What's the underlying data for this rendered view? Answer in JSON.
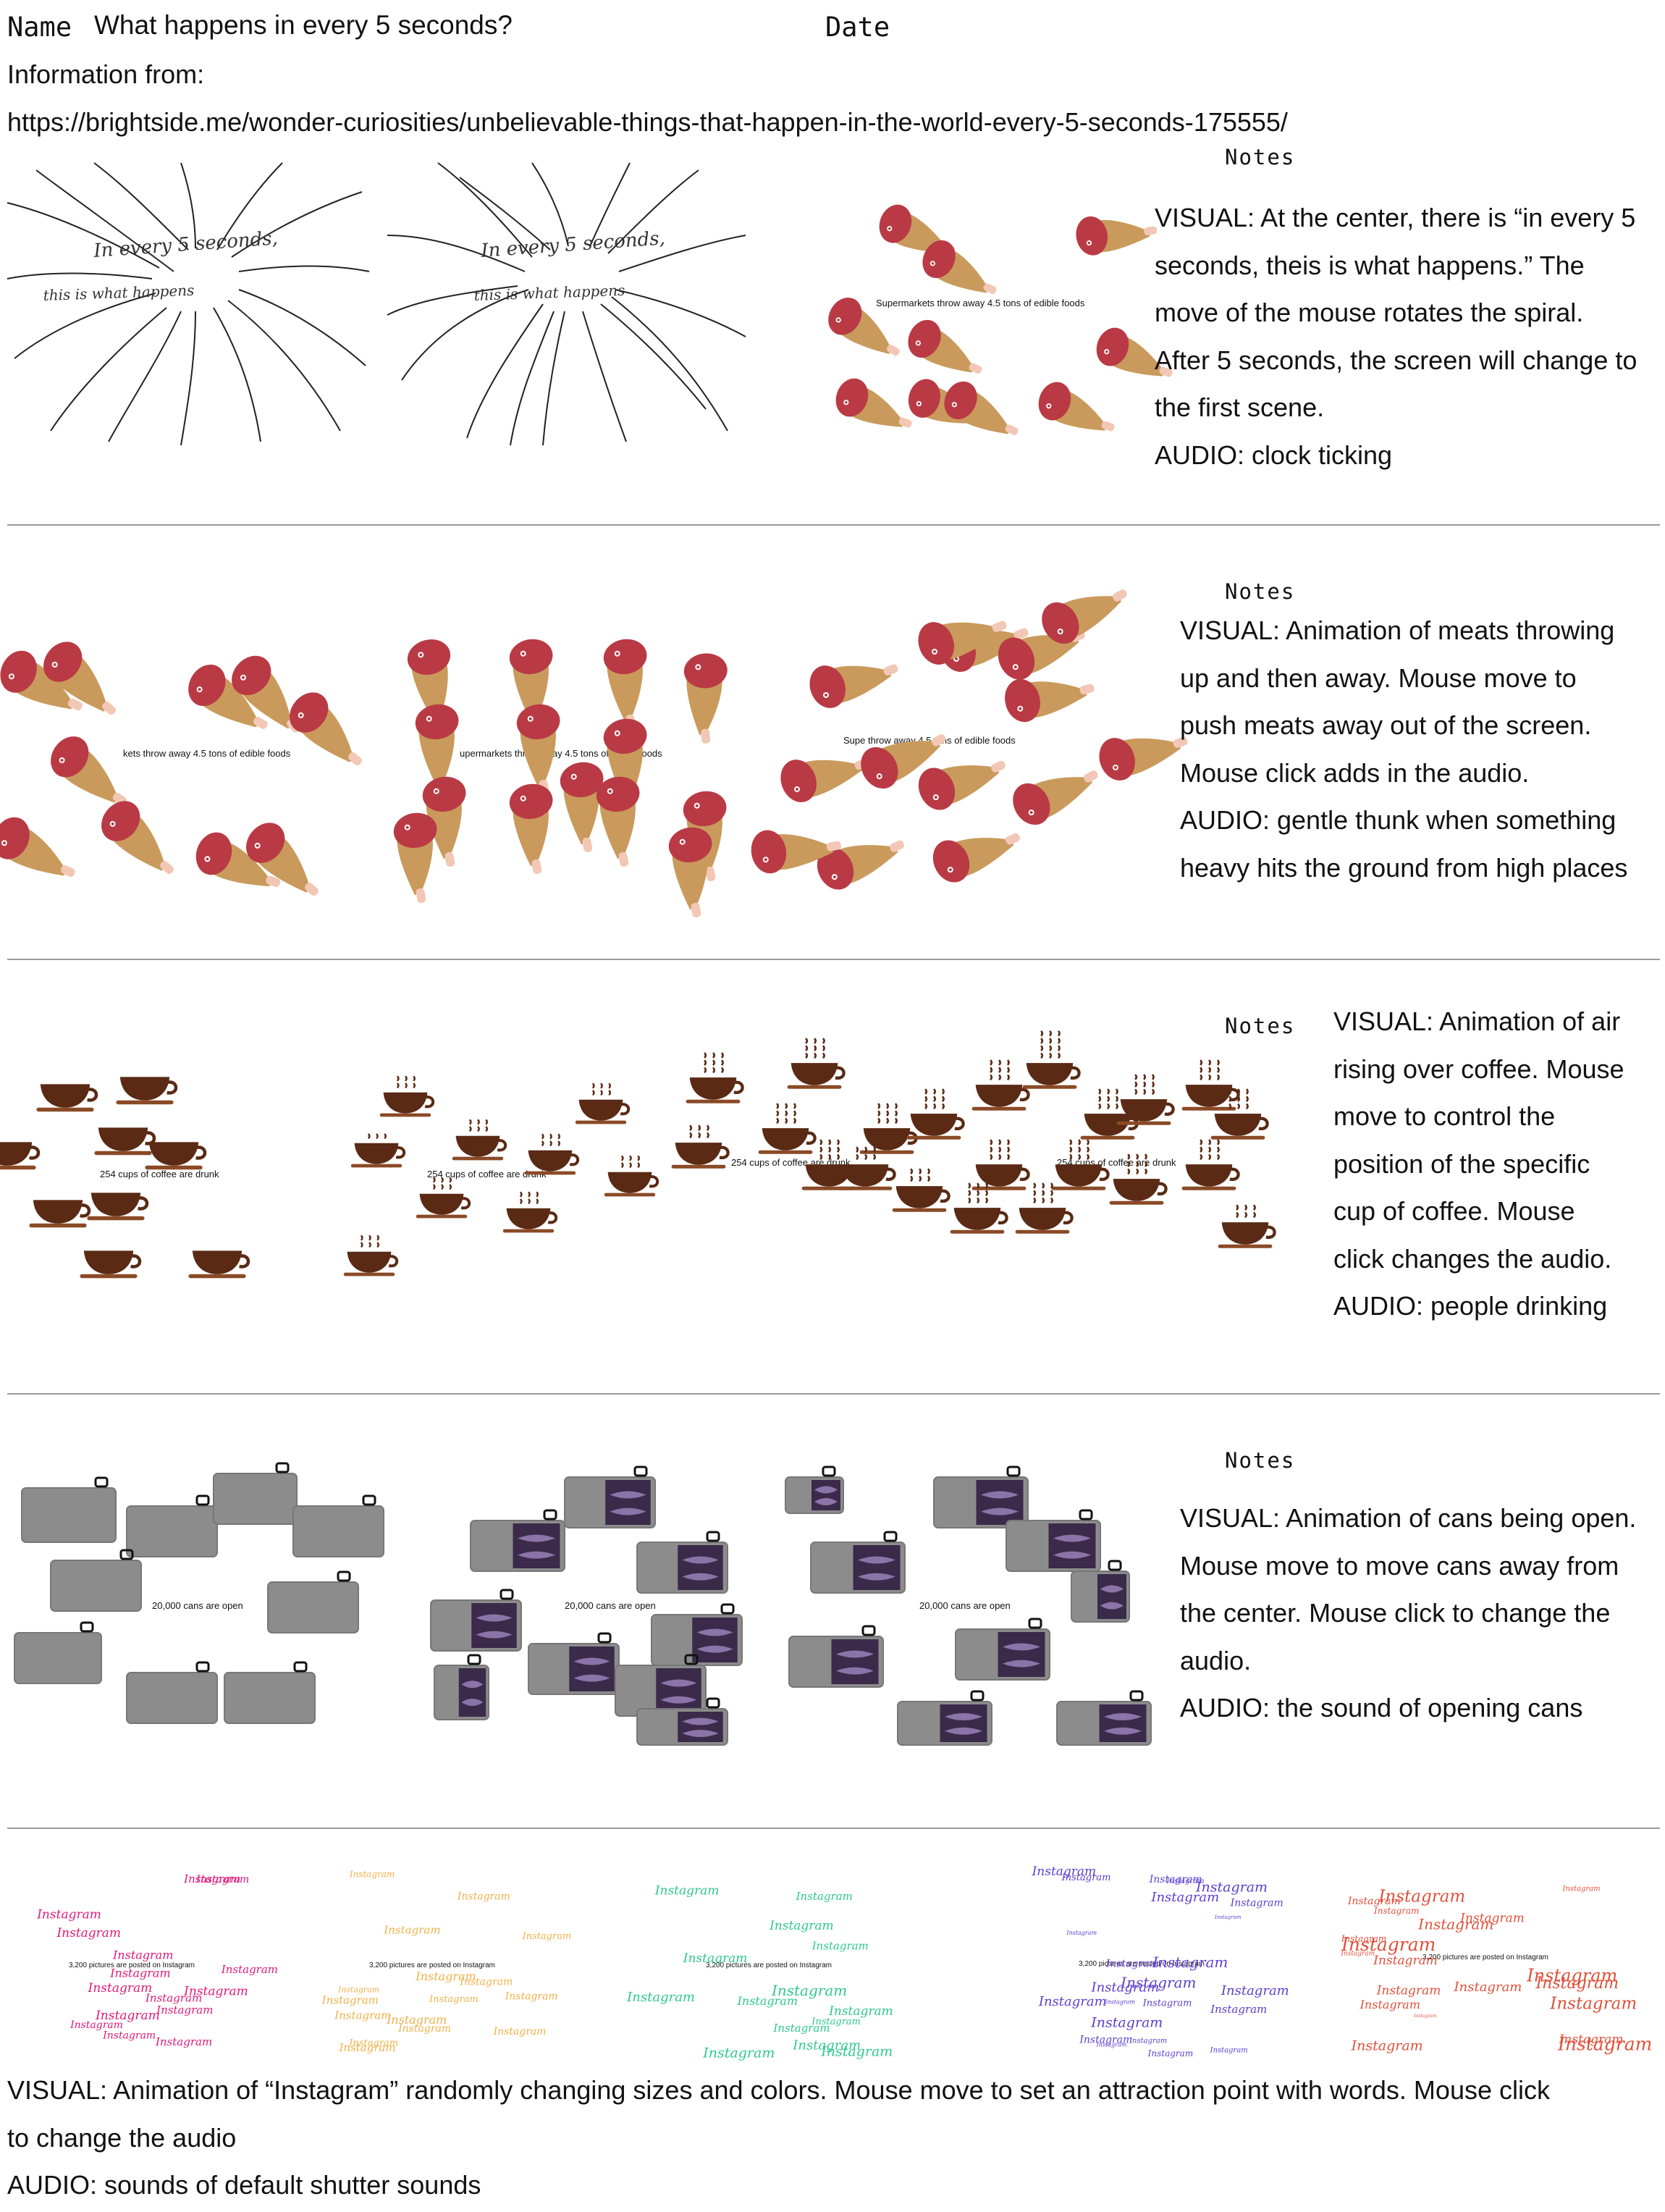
{
  "header": {
    "name_label": "Name",
    "title": "What happens in every 5 seconds?",
    "date_label": "Date",
    "info_label": "Information from:",
    "source_url": "https://brightside.me/wonder-curiosities/unbelievable-things-that-happen-in-the-world-every-5-seconds-175555/"
  },
  "rows": [
    {
      "notes_label": "Notes",
      "sketch_text_1": "In every 5 seconds,",
      "sketch_text_2": "this is what happens",
      "frame_caption": "Supermarkets throw away 4.5 tons of edible foods",
      "desc_lines": [
        "VISUAL: At the center, there is “in every 5",
        "seconds, theis is what happens.” The",
        "move of the mouse rotates the spiral.",
        "After 5 seconds, the screen will change to",
        "the first scene.",
        "AUDIO: clock ticking"
      ]
    },
    {
      "notes_label": "Notes",
      "frame_captions": [
        "kets throw away 4.5 tons of edible foods",
        "upermarkets throw away 4.5 tons of edible foods",
        "Supe       throw away 4.5 tons of edible foods"
      ],
      "desc_lines": [
        "VISUAL: Animation of meats throwing",
        "up and then away. Mouse move to",
        "push meats away out of the screen.",
        "Mouse click adds in the audio.",
        "AUDIO: gentle thunk when something",
        "heavy hits the ground from high places"
      ]
    },
    {
      "notes_label": "Notes",
      "frame_caption": "254 cups of coffee are drunk",
      "desc_lines": [
        "VISUAL: Animation of air",
        "rising over coffee. Mouse",
        "move to control the",
        "position of the  specific",
        "cup of coffee. Mouse",
        "click changes the audio.",
        "AUDIO: people drinking"
      ]
    },
    {
      "notes_label": "Notes",
      "frame_caption": "20,000 cans are open",
      "desc_lines": [
        "VISUAL: Animation of cans being open.",
        "Mouse move to move cans away from",
        "the center. Mouse click to change the",
        "audio.",
        "AUDIO: the sound of opening cans"
      ]
    },
    {
      "word": "Instagram",
      "frame_caption": "3,200 pictures are posted on Instagram",
      "frame_colors": [
        "#e0197a",
        "#f0b04a",
        "#2ec88e",
        "#5a3fd0",
        "#e0503a"
      ],
      "desc_lines": [
        "VISUAL: Animation of “Instagram” randomly changing sizes and colors. Mouse move to set an attraction point with words. Mouse click",
        "to change the audio",
        "AUDIO:  sounds of default shutter sounds"
      ]
    }
  ],
  "colors": {
    "meat": "#b93a44",
    "bone": "#c99a5c",
    "coffee": "#5a2a14",
    "saucer": "#8a4a26",
    "can": "#8c8c8c",
    "fish": "#3b2a4a"
  }
}
